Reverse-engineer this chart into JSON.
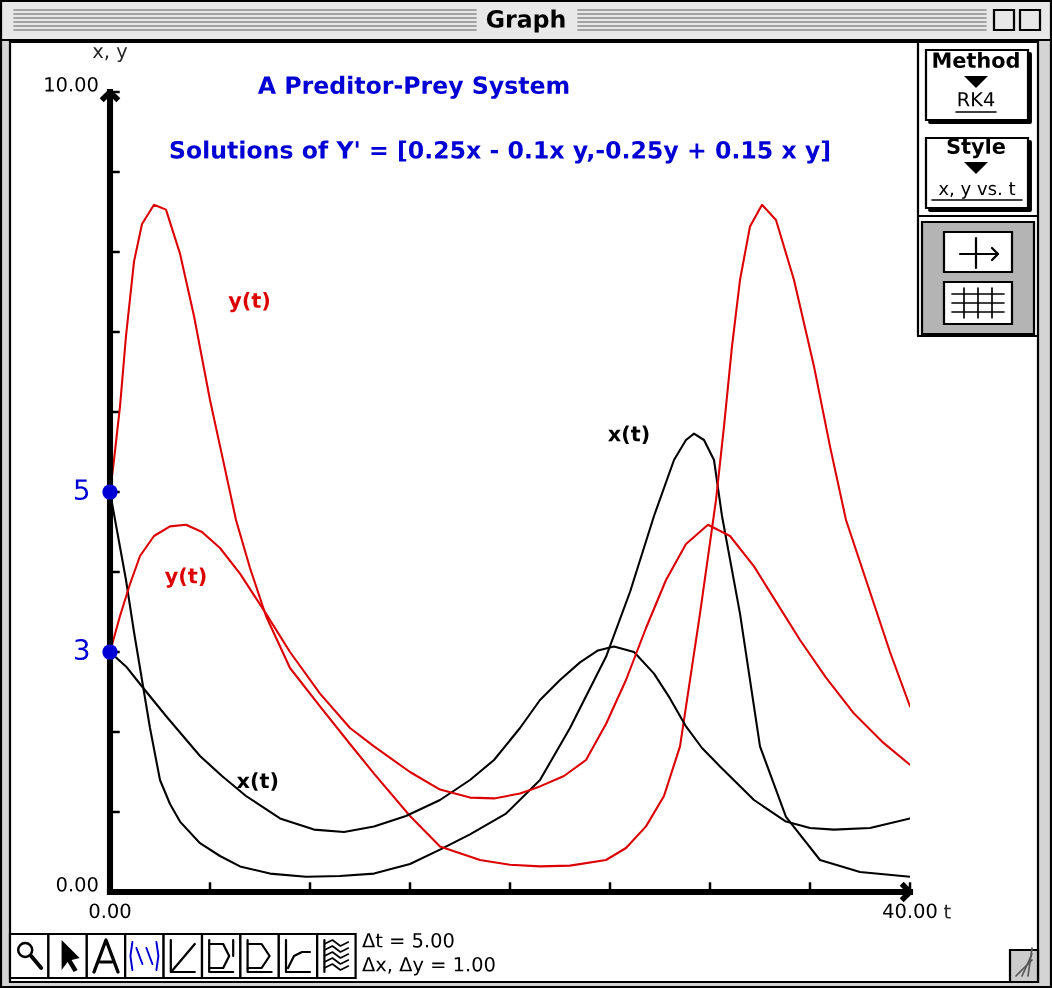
{
  "chart_data": {
    "type": "line",
    "title": "A Preditor-Prey System",
    "subtitle": "Solutions of Y' = [0.25x - 0.1x y,-0.25y + 0.15 x y]",
    "xlabel": "t",
    "ylabel": "x, y",
    "xlim": [
      0,
      40
    ],
    "ylim": [
      0,
      10
    ],
    "xticks": [
      {
        "value": 0,
        "label": "0.00"
      },
      {
        "value": 5,
        "label": null
      },
      {
        "value": 10,
        "label": null
      },
      {
        "value": 15,
        "label": null
      },
      {
        "value": 20,
        "label": null
      },
      {
        "value": 25,
        "label": null
      },
      {
        "value": 30,
        "label": null
      },
      {
        "value": 35,
        "label": null
      },
      {
        "value": 40,
        "label": "40.00"
      }
    ],
    "yticks": [
      {
        "value": 0,
        "label": "0.00"
      },
      {
        "value": 1,
        "label": null
      },
      {
        "value": 2,
        "label": null
      },
      {
        "value": 3,
        "label": null
      },
      {
        "value": 4,
        "label": null
      },
      {
        "value": 5,
        "label": null
      },
      {
        "value": 6,
        "label": null
      },
      {
        "value": 7,
        "label": null
      },
      {
        "value": 8,
        "label": null
      },
      {
        "value": 9,
        "label": null
      },
      {
        "value": 10,
        "label": "10.00"
      }
    ],
    "legend": false,
    "series": [
      {
        "name": "x(t)",
        "color": "#000000",
        "x": [
          0,
          0.4,
          0.8,
          1.2,
          1.6,
          2,
          2.5,
          3,
          3.5,
          4.5,
          5.5,
          6.5,
          8,
          9.8,
          11.5,
          13.2,
          15,
          16.5,
          18,
          19.8,
          21.5,
          23,
          24.8,
          26,
          27.2,
          28.2,
          28.8,
          29.2,
          29.7,
          30.2,
          30.6,
          31.5,
          32.5,
          33.8,
          35.5,
          37.5,
          40
        ],
        "values": [
          5.0,
          4.45,
          3.9,
          3.25,
          2.65,
          2.05,
          1.4,
          1.1,
          0.88,
          0.61,
          0.45,
          0.32,
          0.23,
          0.19,
          0.2,
          0.23,
          0.35,
          0.53,
          0.72,
          0.98,
          1.4,
          2.05,
          2.94,
          3.75,
          4.7,
          5.4,
          5.65,
          5.73,
          5.65,
          5.4,
          4.7,
          3.48,
          1.82,
          0.94,
          0.4,
          0.25,
          0.19
        ]
      },
      {
        "name": "y(t)",
        "color": "#dd0000",
        "x": [
          0,
          0.2,
          0.5,
          0.8,
          1.2,
          1.6,
          2.2,
          2.8,
          3.5,
          4.2,
          5,
          5.8,
          6.3,
          7,
          7.8,
          9,
          10.5,
          12,
          13.2,
          15,
          16.5,
          18.5,
          20,
          21.5,
          23,
          24.8,
          25.8,
          26.8,
          27.7,
          28.5,
          29.5,
          30.3,
          30.7,
          31.1,
          31.5,
          32,
          32.6,
          33.3,
          34.2,
          35.2,
          36,
          36.8,
          37.8,
          39,
          40
        ],
        "values": [
          5.0,
          5.4,
          6.07,
          6.95,
          7.88,
          8.35,
          8.59,
          8.53,
          7.98,
          7.2,
          6.15,
          5.23,
          4.65,
          4.05,
          3.45,
          2.8,
          2.32,
          1.85,
          1.48,
          0.95,
          0.57,
          0.4,
          0.34,
          0.32,
          0.33,
          0.4,
          0.55,
          0.82,
          1.2,
          1.82,
          3.48,
          4.9,
          5.82,
          6.82,
          7.65,
          8.32,
          8.59,
          8.4,
          7.65,
          6.57,
          5.57,
          4.65,
          3.9,
          3.0,
          2.32
        ]
      },
      {
        "name": "x(t)",
        "color": "#000000",
        "x": [
          0,
          0.8,
          1.5,
          2.8,
          4.5,
          5.6,
          6.8,
          8.5,
          10.2,
          11.7,
          13.2,
          14.8,
          16.5,
          18,
          19.2,
          20.5,
          21.5,
          22.5,
          23.5,
          24.4,
          25.2,
          26.2,
          27.2,
          28,
          28.8,
          29.6,
          30.5,
          32.2,
          33.8,
          35,
          36.2,
          38,
          40
        ],
        "values": [
          3.0,
          2.82,
          2.6,
          2.2,
          1.7,
          1.45,
          1.2,
          0.92,
          0.78,
          0.75,
          0.82,
          0.95,
          1.15,
          1.4,
          1.65,
          2.05,
          2.4,
          2.65,
          2.87,
          3.02,
          3.07,
          3.0,
          2.73,
          2.42,
          2.07,
          1.8,
          1.57,
          1.15,
          0.88,
          0.8,
          0.78,
          0.8,
          0.92
        ]
      },
      {
        "name": "y(t)",
        "color": "#dd0000",
        "x": [
          0,
          0.5,
          1,
          1.5,
          2.2,
          3,
          3.8,
          4.6,
          5.5,
          6.5,
          7.8,
          9,
          10.5,
          12,
          13.2,
          15,
          16.5,
          18,
          19.2,
          20.5,
          21.5,
          22.7,
          23.8,
          24.8,
          25.8,
          26.8,
          27.8,
          28.8,
          29.9,
          31,
          32.2,
          33.3,
          34.5,
          35.8,
          37.2,
          38.6,
          40
        ],
        "values": [
          3.0,
          3.45,
          3.85,
          4.2,
          4.45,
          4.57,
          4.59,
          4.5,
          4.3,
          3.98,
          3.48,
          3.0,
          2.48,
          2.05,
          1.82,
          1.5,
          1.28,
          1.18,
          1.17,
          1.23,
          1.32,
          1.45,
          1.65,
          2.1,
          2.65,
          3.3,
          3.9,
          4.35,
          4.59,
          4.45,
          4.07,
          3.63,
          3.15,
          2.68,
          2.23,
          1.88,
          1.59
        ]
      },
      {
        "type": "scatter",
        "color": "#0000d4",
        "x": [
          0,
          0
        ],
        "values": [
          5,
          3
        ],
        "value_labels": [
          "5",
          "3"
        ]
      }
    ],
    "annotations": [
      "Graph",
      "Method",
      "RK4",
      "Style",
      "x, y vs. t",
      "Δt = 5.00",
      "Δx, Δy = 1.00"
    ]
  }
}
